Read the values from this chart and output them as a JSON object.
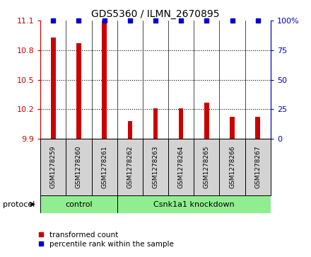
{
  "title": "GDS5360 / ILMN_2670895",
  "samples": [
    "GSM1278259",
    "GSM1278260",
    "GSM1278261",
    "GSM1278262",
    "GSM1278263",
    "GSM1278264",
    "GSM1278265",
    "GSM1278266",
    "GSM1278267"
  ],
  "red_values": [
    10.93,
    10.87,
    11.1,
    10.08,
    10.21,
    10.21,
    10.27,
    10.12,
    10.12
  ],
  "blue_values": [
    100,
    100,
    100,
    100,
    100,
    100,
    100,
    100,
    100
  ],
  "ylim_left": [
    9.9,
    11.1
  ],
  "ylim_right": [
    0,
    100
  ],
  "yticks_left": [
    9.9,
    10.2,
    10.5,
    10.8,
    11.1
  ],
  "yticks_right": [
    0,
    25,
    50,
    75,
    100
  ],
  "ytick_right_labels": [
    "0",
    "25",
    "50",
    "75",
    "100%"
  ],
  "groups": [
    {
      "label": "control",
      "indices": [
        0,
        1,
        2
      ],
      "color": "#90EE90"
    },
    {
      "label": "Csnk1a1 knockdown",
      "indices": [
        3,
        4,
        5,
        6,
        7,
        8
      ],
      "color": "#90EE90"
    }
  ],
  "group_boundary": 2.5,
  "protocol_label": "protocol",
  "legend_red": "transformed count",
  "legend_blue": "percentile rank within the sample",
  "bar_color": "#CC0000",
  "dot_color": "#0000CC",
  "background_color": "#FFFFFF",
  "tick_color_left": "#CC0000",
  "tick_color_right": "#0000CC",
  "bar_width": 0.18,
  "dot_size": 5,
  "figsize": [
    4.4,
    3.63
  ],
  "dpi": 100
}
